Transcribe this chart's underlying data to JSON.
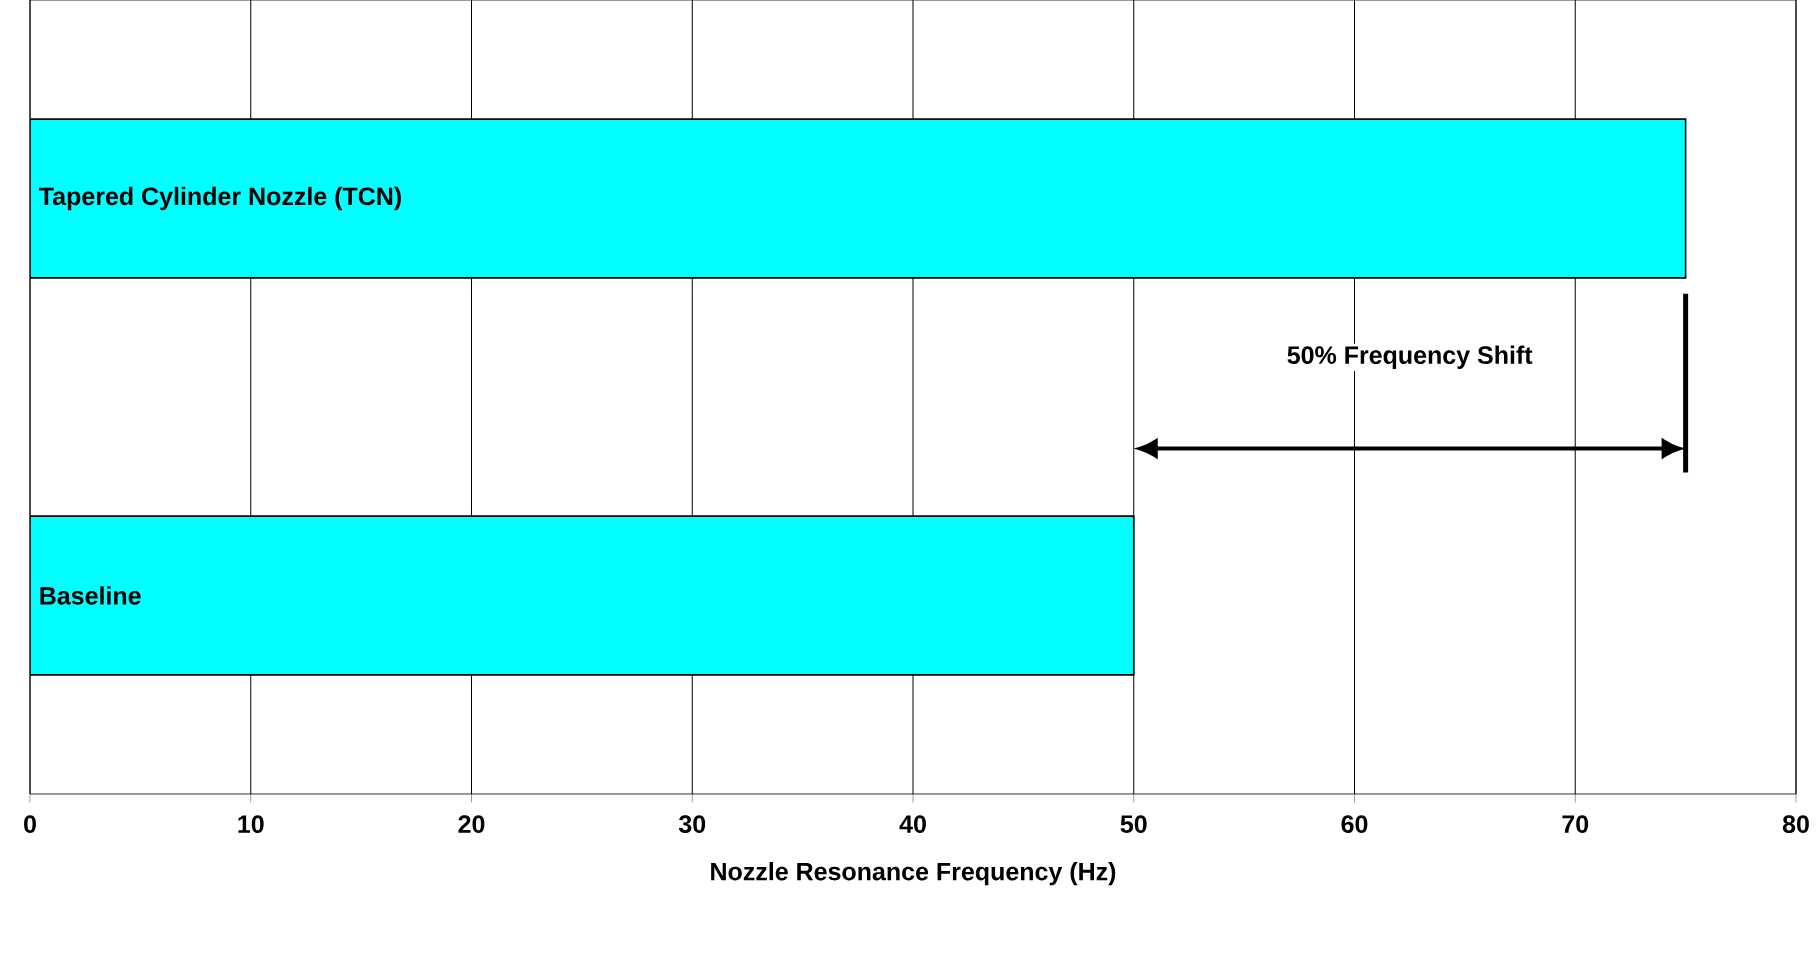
{
  "chart_data": {
    "type": "bar",
    "orientation": "horizontal",
    "categories": [
      "Tapered Cylinder Nozzle (TCN)",
      "Baseline"
    ],
    "values": [
      75,
      50
    ],
    "color": "#00ffff",
    "xlabel": "Nozzle Resonance Frequency (Hz)",
    "xlim": [
      0,
      80
    ],
    "xticks": [
      0,
      10,
      20,
      30,
      40,
      50,
      60,
      70,
      80
    ],
    "grid": "x",
    "ref_lines": [
      {
        "axis": "x",
        "value": 75
      }
    ],
    "annotations": [
      "50% Frequency Shift"
    ]
  }
}
